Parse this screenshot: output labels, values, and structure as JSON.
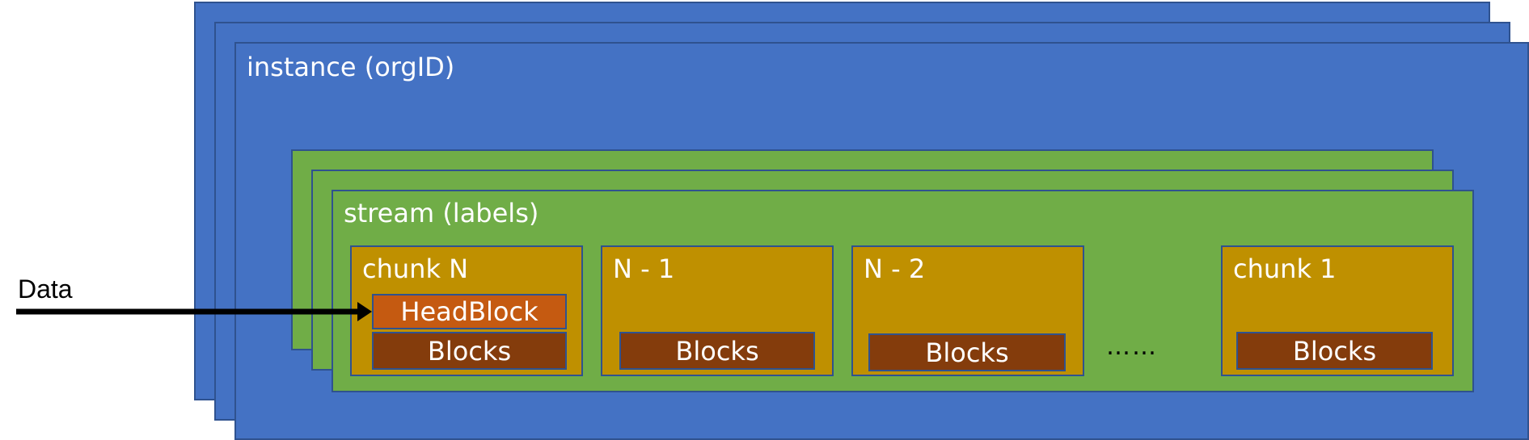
{
  "instance": {
    "label": "instance (orgID)"
  },
  "stream": {
    "label": "stream (labels)"
  },
  "input": {
    "label": "Data"
  },
  "chunks": [
    {
      "label": "chunk N",
      "head_block": "HeadBlock",
      "blocks": "Blocks"
    },
    {
      "label": "N - 1",
      "blocks": "Blocks"
    },
    {
      "label": "N - 2",
      "blocks": "Blocks"
    },
    {
      "label": "chunk 1",
      "blocks": "Blocks"
    }
  ],
  "ellipsis": "……",
  "colors": {
    "instance": "#4472c4",
    "stream": "#70ad47",
    "chunk": "#bf9000",
    "blocks": "#843c0c",
    "head_block": "#c55a11",
    "outline": "#2f528f"
  }
}
